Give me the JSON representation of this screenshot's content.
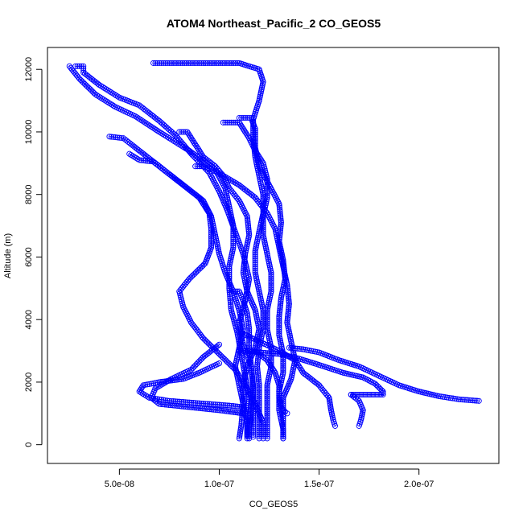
{
  "chart_data": {
    "type": "scatter",
    "title": "ATOM4 Northeast_Pacific_2 CO_GEOS5",
    "xlabel": "CO_GEOS5",
    "ylabel": "Altitude (m)",
    "xlim": [
      1.4e-08,
      2.4e-07
    ],
    "ylim": [
      -600,
      12700
    ],
    "x_ticks": [
      5e-08,
      1e-07,
      1.5e-07,
      2e-07
    ],
    "x_tick_labels": [
      "5.0e-08",
      "1.0e-07",
      "1.5e-07",
      "2.0e-07"
    ],
    "y_ticks": [
      0,
      2000,
      4000,
      6000,
      8000,
      10000,
      12000
    ],
    "y_tick_labels": [
      "0",
      "2000",
      "4000",
      "6000",
      "8000",
      "10000",
      "12000"
    ],
    "grid": false,
    "marker": "open-circle",
    "colors": {
      "series": "#0000ff",
      "axis": "#000000",
      "background": "#ffffff"
    },
    "series": [
      {
        "points": [
          [
            2.8e-08,
            12100
          ],
          [
            3.2e-08,
            12100
          ],
          [
            3.2e-08,
            11900
          ],
          [
            4e-08,
            11500
          ],
          [
            5e-08,
            11100
          ],
          [
            6e-08,
            10850
          ],
          [
            6.4e-08,
            10650
          ],
          [
            7e-08,
            10350
          ],
          [
            7.8e-08,
            9900
          ],
          [
            8.6e-08,
            9300
          ],
          [
            9.5e-08,
            8700
          ],
          [
            1e-07,
            8100
          ],
          [
            1.04e-07,
            7500
          ],
          [
            1.08e-07,
            6800
          ],
          [
            1.12e-07,
            6100
          ],
          [
            1.15e-07,
            5300
          ],
          [
            1.13e-07,
            4600
          ],
          [
            1.1e-07,
            3900
          ],
          [
            1.12e-07,
            3200
          ],
          [
            1.16e-07,
            2500
          ],
          [
            1.17e-07,
            1800
          ],
          [
            1.16e-07,
            1100
          ],
          [
            1.15e-07,
            500
          ],
          [
            1.15e-07,
            200
          ]
        ]
      },
      {
        "points": [
          [
            2.5e-08,
            12100
          ],
          [
            3e-08,
            11700
          ],
          [
            3.8e-08,
            11200
          ],
          [
            4.8e-08,
            10800
          ],
          [
            5.8e-08,
            10500
          ],
          [
            7e-08,
            10000
          ],
          [
            8.5e-08,
            9400
          ],
          [
            9.8e-08,
            8800
          ],
          [
            1.03e-07,
            8200
          ],
          [
            1.05e-07,
            7600
          ],
          [
            1.07e-07,
            7000
          ],
          [
            1.07e-07,
            6300
          ],
          [
            1.05e-07,
            5700
          ],
          [
            1.05e-07,
            5000
          ],
          [
            1.06e-07,
            4300
          ],
          [
            1.09e-07,
            3600
          ],
          [
            1.11e-07,
            2900
          ],
          [
            1.13e-07,
            2200
          ],
          [
            1.15e-07,
            1500
          ],
          [
            1.14e-07,
            800
          ],
          [
            1.14e-07,
            300
          ]
        ]
      },
      {
        "points": [
          [
            4.5e-08,
            9850
          ],
          [
            5.2e-08,
            9800
          ],
          [
            5.6e-08,
            9600
          ],
          [
            6.4e-08,
            9200
          ],
          [
            7.4e-08,
            8700
          ],
          [
            8.4e-08,
            8200
          ],
          [
            9.2e-08,
            7800
          ],
          [
            9.6e-08,
            7300
          ],
          [
            9.8e-08,
            6700
          ],
          [
            1e-07,
            6100
          ],
          [
            1.03e-07,
            5500
          ],
          [
            1.07e-07,
            4900
          ],
          [
            1.1e-07,
            4300
          ],
          [
            1.12e-07,
            3700
          ],
          [
            1.1e-07,
            3100
          ],
          [
            1.08e-07,
            2500
          ],
          [
            1.1e-07,
            1900
          ],
          [
            1.12e-07,
            1300
          ],
          [
            1.11e-07,
            600
          ],
          [
            1.1e-07,
            200
          ]
        ]
      },
      {
        "points": [
          [
            5.5e-08,
            9300
          ],
          [
            6e-08,
            9100
          ],
          [
            6.7e-08,
            9050
          ],
          [
            7.4e-08,
            8700
          ],
          [
            8.2e-08,
            8300
          ],
          [
            9e-08,
            7900
          ],
          [
            9.5e-08,
            7400
          ],
          [
            9.6e-08,
            6900
          ],
          [
            9.6e-08,
            6300
          ],
          [
            9.3e-08,
            5800
          ],
          [
            8.5e-08,
            5300
          ],
          [
            8e-08,
            4900
          ],
          [
            8.2e-08,
            4400
          ],
          [
            8.6e-08,
            3900
          ],
          [
            9.2e-08,
            3400
          ],
          [
            1e-07,
            2900
          ],
          [
            1.08e-07,
            2400
          ],
          [
            1.13e-07,
            1900
          ],
          [
            1.18e-07,
            1300
          ],
          [
            1.22e-07,
            700
          ],
          [
            1.22e-07,
            200
          ]
        ]
      },
      {
        "points": [
          [
            6.7e-08,
            12200
          ],
          [
            7.5e-08,
            12200
          ],
          [
            9.5e-08,
            12200
          ],
          [
            1.1e-07,
            12200
          ],
          [
            1.2e-07,
            12000
          ],
          [
            1.22e-07,
            11600
          ],
          [
            1.2e-07,
            11000
          ],
          [
            1.17e-07,
            10400
          ],
          [
            1.17e-07,
            9800
          ],
          [
            1.18e-07,
            9200
          ],
          [
            1.2e-07,
            8600
          ],
          [
            1.22e-07,
            8000
          ],
          [
            1.22e-07,
            7400
          ],
          [
            1.2e-07,
            6800
          ],
          [
            1.18e-07,
            6200
          ],
          [
            1.18e-07,
            5500
          ],
          [
            1.2e-07,
            4900
          ],
          [
            1.22e-07,
            4300
          ],
          [
            1.22e-07,
            3700
          ],
          [
            1.2e-07,
            3100
          ],
          [
            1.19e-07,
            2500
          ],
          [
            1.2e-07,
            1900
          ],
          [
            1.2e-07,
            1300
          ],
          [
            1.2e-07,
            700
          ],
          [
            1.2e-07,
            200
          ]
        ]
      },
      {
        "points": [
          [
            8e-08,
            10000
          ],
          [
            8.4e-08,
            10000
          ],
          [
            8.8e-08,
            9600
          ],
          [
            9.2e-08,
            9200
          ],
          [
            9.8e-08,
            8900
          ],
          [
            1.02e-07,
            8600
          ],
          [
            1.05e-07,
            8200
          ],
          [
            1.1e-07,
            7800
          ],
          [
            1.14e-07,
            7300
          ],
          [
            1.15e-07,
            6700
          ],
          [
            1.13e-07,
            6100
          ],
          [
            1.12e-07,
            5500
          ],
          [
            1.14e-07,
            4900
          ],
          [
            1.18e-07,
            4300
          ],
          [
            1.2e-07,
            3700
          ],
          [
            1.18e-07,
            3100
          ],
          [
            1.14e-07,
            2500
          ],
          [
            1.12e-07,
            1900
          ],
          [
            1.12e-07,
            1300
          ],
          [
            1.14e-07,
            700
          ],
          [
            1.14e-07,
            200
          ]
        ]
      },
      {
        "points": [
          [
            1.02e-07,
            10300
          ],
          [
            1.06e-07,
            10300
          ],
          [
            1.1e-07,
            10300
          ],
          [
            1.12e-07,
            10100
          ],
          [
            1.15e-07,
            9800
          ],
          [
            1.18e-07,
            9400
          ],
          [
            1.22e-07,
            9000
          ],
          [
            1.24e-07,
            8500
          ],
          [
            1.24e-07,
            7900
          ],
          [
            1.22e-07,
            7300
          ],
          [
            1.22e-07,
            6700
          ],
          [
            1.24e-07,
            6100
          ],
          [
            1.26e-07,
            5500
          ],
          [
            1.26e-07,
            4900
          ],
          [
            1.24e-07,
            4300
          ],
          [
            1.24e-07,
            3700
          ],
          [
            1.26e-07,
            3100
          ],
          [
            1.26e-07,
            2500
          ],
          [
            1.24e-07,
            1900
          ],
          [
            1.24e-07,
            1300
          ],
          [
            1.24e-07,
            700
          ],
          [
            1.24e-07,
            200
          ]
        ]
      },
      {
        "points": [
          [
            1.1e-07,
            10450
          ],
          [
            1.16e-07,
            10450
          ],
          [
            1.18e-07,
            10100
          ],
          [
            1.18e-07,
            9500
          ],
          [
            1.2e-07,
            8900
          ],
          [
            1.25e-07,
            8300
          ],
          [
            1.3e-07,
            7700
          ],
          [
            1.31e-07,
            7100
          ],
          [
            1.3e-07,
            6500
          ],
          [
            1.32e-07,
            5900
          ],
          [
            1.33e-07,
            5300
          ],
          [
            1.31e-07,
            4700
          ],
          [
            1.3e-07,
            4100
          ],
          [
            1.3e-07,
            3500
          ],
          [
            1.32e-07,
            2900
          ],
          [
            1.32e-07,
            2300
          ],
          [
            1.3e-07,
            1700
          ],
          [
            1.3e-07,
            1100
          ],
          [
            1.32e-07,
            500
          ],
          [
            1.32e-07,
            200
          ]
        ]
      },
      {
        "points": [
          [
            8.8e-08,
            8900
          ],
          [
            9.2e-08,
            8900
          ],
          [
            9.6e-08,
            8800
          ],
          [
            1.02e-07,
            8600
          ],
          [
            1.1e-07,
            8300
          ],
          [
            1.18e-07,
            7900
          ],
          [
            1.24e-07,
            7400
          ],
          [
            1.28e-07,
            6900
          ],
          [
            1.3e-07,
            6300
          ],
          [
            1.32e-07,
            5700
          ],
          [
            1.34e-07,
            5100
          ],
          [
            1.35e-07,
            4500
          ],
          [
            1.34e-07,
            3900
          ],
          [
            1.36e-07,
            3300
          ],
          [
            1.38e-07,
            2700
          ],
          [
            1.36e-07,
            2100
          ],
          [
            1.32e-07,
            1500
          ],
          [
            1.32e-07,
            900
          ],
          [
            1.32e-07,
            200
          ]
        ]
      },
      {
        "points": [
          [
            1.06e-07,
            4900
          ],
          [
            1.1e-07,
            4900
          ],
          [
            1.12e-07,
            4600
          ],
          [
            1.14e-07,
            4200
          ],
          [
            1.15e-07,
            3700
          ],
          [
            1.15e-07,
            3100
          ],
          [
            1.16e-07,
            2500
          ],
          [
            1.17e-07,
            1900
          ],
          [
            1.17e-07,
            1300
          ],
          [
            1.17e-07,
            700
          ],
          [
            1.17e-07,
            250
          ]
        ]
      },
      {
        "points": [
          [
            1.1e-07,
            3000
          ],
          [
            1.14e-07,
            3000
          ],
          [
            1.2e-07,
            2950
          ],
          [
            1.3e-07,
            2900
          ],
          [
            1.4e-07,
            2750
          ],
          [
            1.5e-07,
            2550
          ],
          [
            1.62e-07,
            2300
          ],
          [
            1.72e-07,
            2150
          ],
          [
            1.78e-07,
            1950
          ],
          [
            1.82e-07,
            1700
          ],
          [
            1.82e-07,
            1600
          ],
          [
            1.74e-07,
            1600
          ],
          [
            1.66e-07,
            1600
          ]
        ]
      },
      {
        "points": [
          [
            1.35e-07,
            3100
          ],
          [
            1.42e-07,
            3050
          ],
          [
            1.5e-07,
            2950
          ],
          [
            1.6e-07,
            2700
          ],
          [
            1.7e-07,
            2500
          ],
          [
            1.8e-07,
            2200
          ],
          [
            1.9e-07,
            1900
          ],
          [
            2e-07,
            1700
          ],
          [
            2.1e-07,
            1550
          ],
          [
            2.2e-07,
            1450
          ],
          [
            2.3e-07,
            1400
          ]
        ]
      },
      {
        "points": [
          [
            1.1e-07,
            3600
          ],
          [
            1.2e-07,
            3300
          ],
          [
            1.3e-07,
            3000
          ],
          [
            1.38e-07,
            2700
          ],
          [
            1.42e-07,
            2300
          ],
          [
            1.5e-07,
            1900
          ],
          [
            1.55e-07,
            1500
          ],
          [
            1.56e-07,
            1100
          ],
          [
            1.57e-07,
            800
          ],
          [
            1.58e-07,
            600
          ]
        ]
      },
      {
        "points": [
          [
            1.66e-07,
            1600
          ],
          [
            1.7e-07,
            1400
          ],
          [
            1.72e-07,
            1100
          ],
          [
            1.71e-07,
            800
          ],
          [
            1.7e-07,
            600
          ]
        ]
      },
      {
        "points": [
          [
            1e-07,
            2600
          ],
          [
            9e-08,
            2300
          ],
          [
            8.2e-08,
            2100
          ],
          [
            7e-08,
            2000
          ],
          [
            6.2e-08,
            1900
          ],
          [
            6e-08,
            1700
          ],
          [
            6.5e-08,
            1500
          ],
          [
            7.5e-08,
            1400
          ],
          [
            8.5e-08,
            1350
          ],
          [
            9.5e-08,
            1300
          ],
          [
            1.05e-07,
            1250
          ],
          [
            1.12e-07,
            1200
          ]
        ]
      },
      {
        "points": [
          [
            1e-07,
            3200
          ],
          [
            9.2e-08,
            2800
          ],
          [
            8.6e-08,
            2400
          ],
          [
            7.6e-08,
            2100
          ],
          [
            6.8e-08,
            1800
          ],
          [
            6.6e-08,
            1500
          ],
          [
            7e-08,
            1300
          ],
          [
            8.5e-08,
            1200
          ],
          [
            1e-07,
            1100
          ],
          [
            1.12e-07,
            1000
          ]
        ]
      },
      {
        "points": [
          [
            1.18e-07,
            3000
          ],
          [
            1.24e-07,
            2700
          ],
          [
            1.28e-07,
            2300
          ],
          [
            1.3e-07,
            1900
          ],
          [
            1.3e-07,
            1500
          ],
          [
            1.31e-07,
            1200
          ],
          [
            1.33e-07,
            1050
          ],
          [
            1.34e-07,
            1000
          ]
        ]
      }
    ]
  }
}
